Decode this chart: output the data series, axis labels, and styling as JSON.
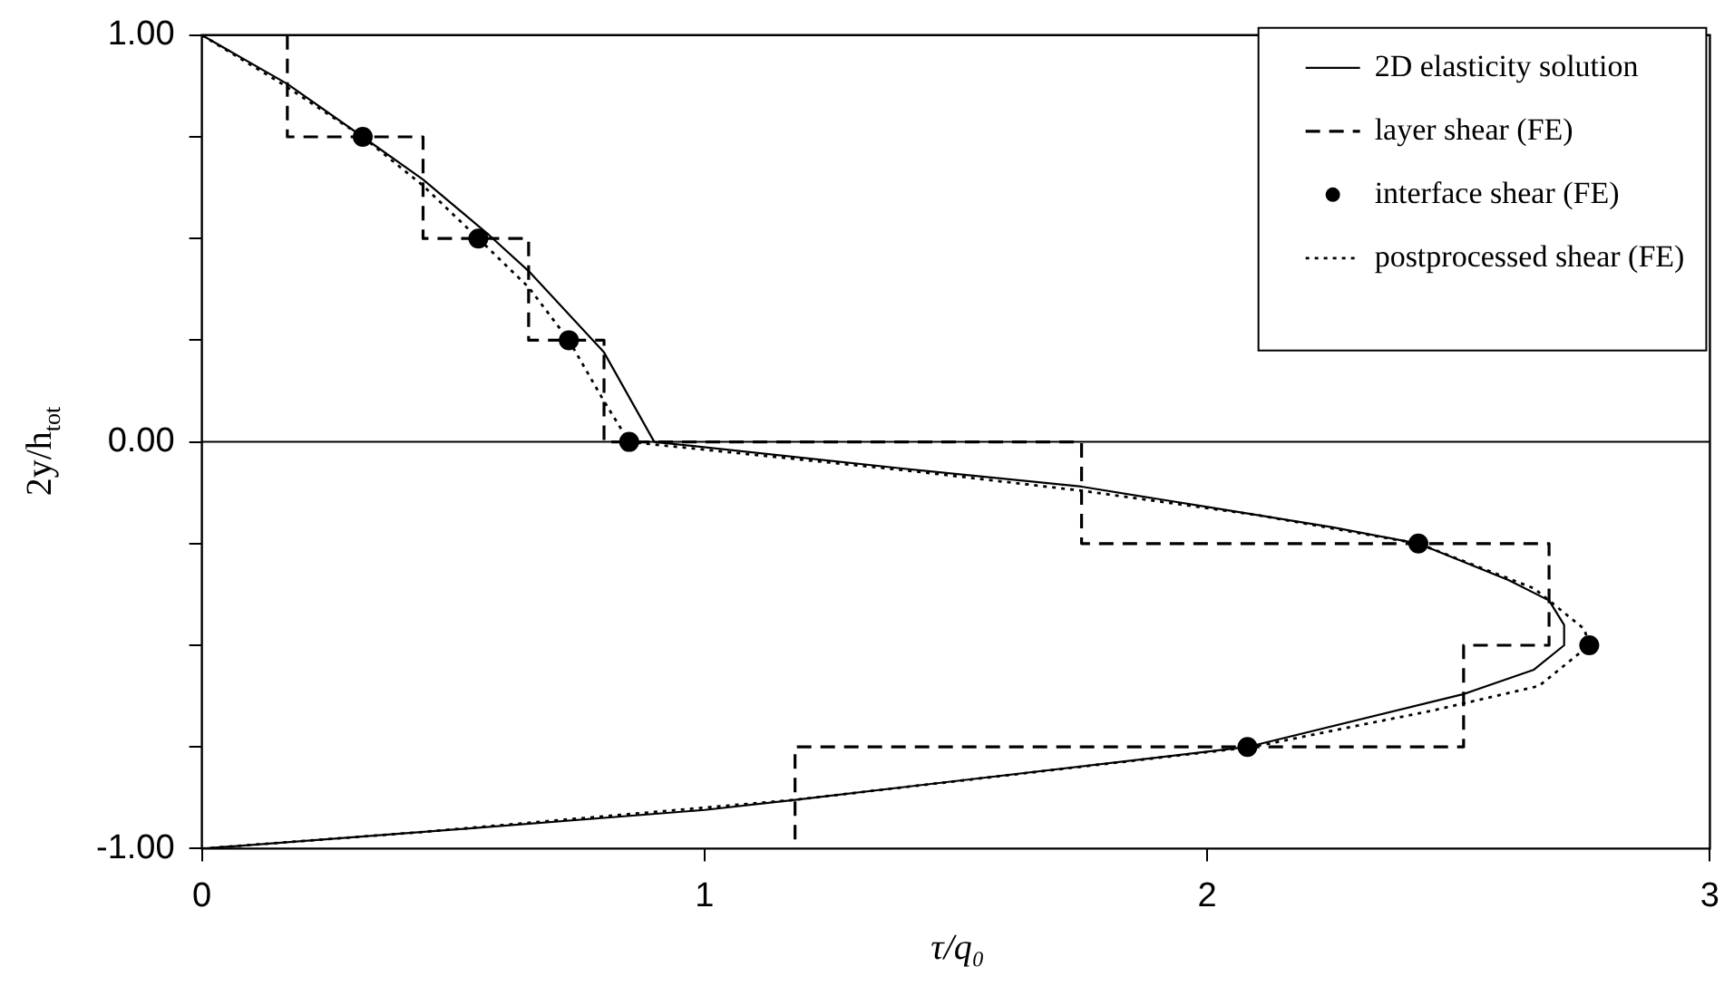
{
  "chart_data": {
    "type": "line",
    "xlabel": "τ/q₀",
    "ylabel": "2y/h$_{tot}$",
    "xlim": [
      0,
      3
    ],
    "xticks": [
      0,
      1,
      2,
      3
    ],
    "ylim": [
      -1,
      1
    ],
    "yticks": [
      {
        "value": -1,
        "label": "-1.00"
      },
      {
        "value": -0.75,
        "label": null
      },
      {
        "value": -0.5,
        "label": null
      },
      {
        "value": -0.25,
        "label": null
      },
      {
        "value": 0,
        "label": "0.00"
      },
      {
        "value": 0.25,
        "label": null
      },
      {
        "value": 0.5,
        "label": null
      },
      {
        "value": 0.75,
        "label": null
      },
      {
        "value": 1,
        "label": "1.00"
      }
    ],
    "grid": false,
    "legend": "top right",
    "ref_lines": [
      {
        "axis": "y",
        "value": 0,
        "color": "#000000"
      }
    ],
    "series": [
      {
        "name": "2D elasticity solution",
        "color": "#000000",
        "line_style": "solid",
        "marker": "none",
        "x": [
          0,
          0.17,
          0.32,
          0.44,
          0.57,
          0.65,
          0.8,
          0.9,
          1.39,
          1.75,
          2.0,
          2.25,
          2.42,
          2.6,
          2.68,
          2.71,
          2.71,
          2.65,
          2.51,
          2.08,
          1.18,
          1.0,
          0.43,
          0
        ],
        "values": [
          1,
          0.88,
          0.75,
          0.645,
          0.51,
          0.42,
          0.22,
          0,
          -0.065,
          -0.11,
          -0.16,
          -0.21,
          -0.25,
          -0.34,
          -0.39,
          -0.45,
          -0.5,
          -0.56,
          -0.62,
          -0.75,
          -0.88,
          -0.905,
          -0.96,
          -1
        ]
      },
      {
        "name": "layer shear (FE)",
        "color": "#000000",
        "line_style": "dashed",
        "marker": "none",
        "x": [
          0.17,
          0.17,
          0.44,
          0.44,
          0.65,
          0.65,
          0.8,
          0.8,
          1.75,
          1.75,
          2.68,
          2.68,
          2.51,
          2.51,
          1.18,
          1.18
        ],
        "values": [
          1,
          0.75,
          0.75,
          0.5,
          0.5,
          0.25,
          0.25,
          0,
          0,
          -0.25,
          -0.25,
          -0.5,
          -0.5,
          -0.75,
          -0.75,
          -1
        ]
      },
      {
        "name": "interface shear (FE)",
        "type": "scatter",
        "color": "#000000",
        "marker": "circle",
        "x": [
          0.32,
          0.55,
          0.73,
          0.85,
          2.42,
          2.76,
          2.08
        ],
        "values": [
          0.75,
          0.5,
          0.25,
          0,
          -0.25,
          -0.5,
          -0.75
        ]
      },
      {
        "name": "postprocessed shear (FE)",
        "color": "#000000",
        "line_style": "dotted",
        "marker": "none",
        "x": [
          0,
          0.16,
          0.32,
          0.44,
          0.55,
          0.65,
          0.73,
          0.8,
          0.85,
          1.4,
          1.75,
          2.1,
          2.42,
          2.65,
          2.75,
          2.76,
          2.66,
          2.45,
          2.09,
          1.6,
          1.18,
          0.43,
          0
        ],
        "values": [
          1,
          0.88,
          0.75,
          0.63,
          0.5,
          0.38,
          0.25,
          0.1,
          0,
          -0.07,
          -0.12,
          -0.18,
          -0.25,
          -0.36,
          -0.46,
          -0.5,
          -0.6,
          -0.66,
          -0.75,
          -0.82,
          -0.88,
          -0.96,
          -1
        ]
      }
    ]
  }
}
